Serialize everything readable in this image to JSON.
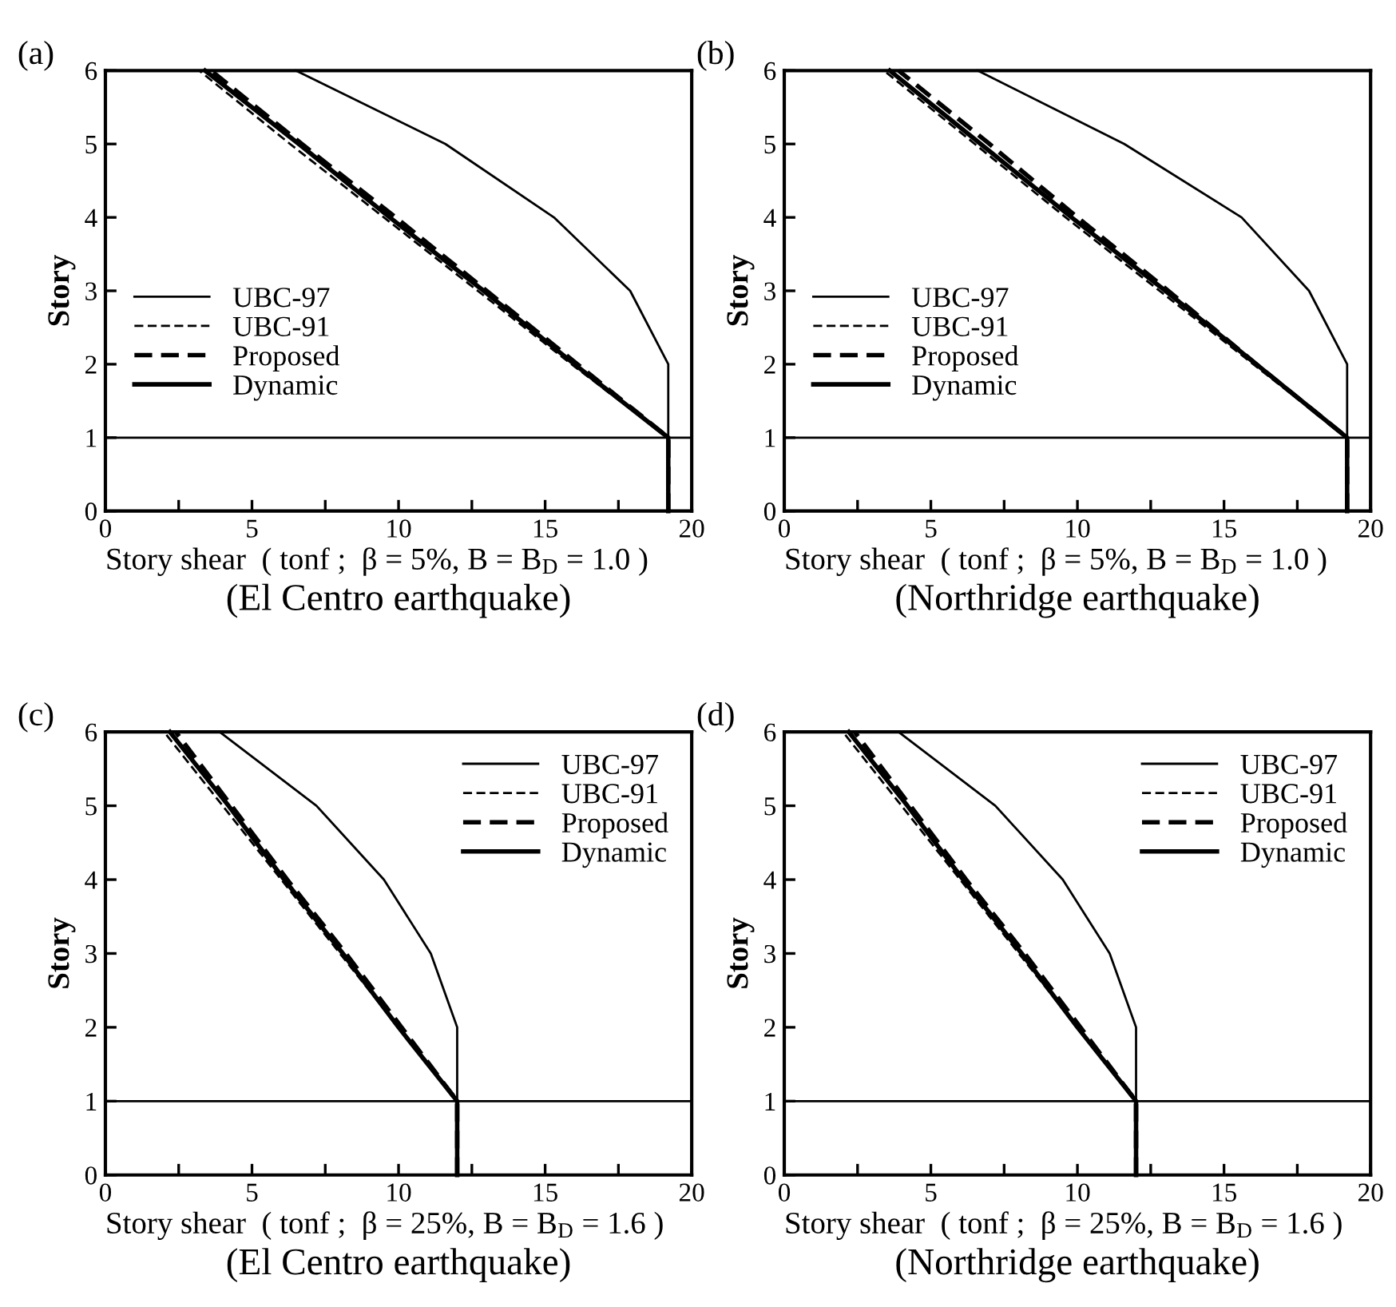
{
  "chart_data": [
    {
      "type": "line",
      "title": "(a)",
      "xlabel": "Story shear  ( tonf ;  β = 5%, B = B$_{D}$ = 1.0 )",
      "ylabel": "Story",
      "annotations": [
        "(El Centro earthquake)"
      ],
      "xlim": [
        0,
        20
      ],
      "ylim": [
        0,
        6
      ],
      "xticks": [
        0,
        {
          "value": 2.5,
          "label": null
        },
        5,
        {
          "value": 7.5,
          "label": null
        },
        10,
        {
          "value": 12.5,
          "label": null
        },
        15,
        {
          "value": 17.5,
          "label": null
        },
        20
      ],
      "yticks": [
        0,
        1,
        2,
        3,
        4,
        5,
        6
      ],
      "legend": "left",
      "grid": false,
      "ref_lines": [
        {
          "axis": "y",
          "value": 1
        }
      ],
      "series": [
        {
          "name": "UBC-97",
          "color": "#000000",
          "line_style": "solid",
          "x": [
            19.2,
            19.2,
            19.2,
            17.9,
            15.3,
            11.6,
            6.5
          ],
          "values": [
            0,
            1,
            2,
            3,
            4,
            5,
            6
          ]
        },
        {
          "name": "UBC-91",
          "color": "#000000",
          "line_style": "dashed",
          "x": [
            19.2,
            19.2,
            15.9,
            12.7,
            9.5,
            6.3,
            3.2
          ],
          "values": [
            0,
            1,
            2,
            3,
            4,
            5,
            6
          ]
        },
        {
          "name": "Proposed",
          "color": "#000000",
          "line_style": "dashed",
          "x": [
            19.2,
            19.2,
            16.1,
            13.0,
            9.9,
            6.7,
            3.6
          ],
          "values": [
            0,
            1,
            2,
            3,
            4,
            5,
            6
          ]
        },
        {
          "name": "Dynamic",
          "color": "#000000",
          "line_style": "solid",
          "x": [
            19.2,
            19.2,
            16.0,
            12.9,
            9.7,
            6.6,
            3.4
          ],
          "values": [
            0,
            1,
            2,
            3,
            4,
            5,
            6
          ]
        }
      ]
    },
    {
      "type": "line",
      "title": "(b)",
      "xlabel": "Story shear  ( tonf ;  β = 5%, B = B$_{D}$ = 1.0 )",
      "ylabel": "Story",
      "annotations": [
        "(Northridge earthquake)"
      ],
      "xlim": [
        0,
        20
      ],
      "ylim": [
        0,
        6
      ],
      "xticks": [
        0,
        {
          "value": 2.5,
          "label": null
        },
        5,
        {
          "value": 7.5,
          "label": null
        },
        10,
        {
          "value": 12.5,
          "label": null
        },
        15,
        {
          "value": 17.5,
          "label": null
        },
        20
      ],
      "yticks": [
        0,
        1,
        2,
        3,
        4,
        5,
        6
      ],
      "legend": "left",
      "grid": false,
      "ref_lines": [
        {
          "axis": "y",
          "value": 1
        }
      ],
      "series": [
        {
          "name": "UBC-97",
          "color": "#000000",
          "line_style": "solid",
          "x": [
            19.2,
            19.2,
            19.2,
            17.9,
            15.6,
            11.6,
            6.6
          ],
          "values": [
            0,
            1,
            2,
            3,
            4,
            5,
            6
          ]
        },
        {
          "name": "UBC-91",
          "color": "#000000",
          "line_style": "dashed",
          "x": [
            19.2,
            19.2,
            16.0,
            12.8,
            9.6,
            6.5,
            3.4
          ],
          "values": [
            0,
            1,
            2,
            3,
            4,
            5,
            6
          ]
        },
        {
          "name": "Proposed",
          "color": "#000000",
          "line_style": "dashed",
          "x": [
            19.2,
            19.2,
            16.1,
            13.1,
            10.0,
            7.0,
            3.9
          ],
          "values": [
            0,
            1,
            2,
            3,
            4,
            5,
            6
          ]
        },
        {
          "name": "Dynamic",
          "color": "#000000",
          "line_style": "solid",
          "x": [
            19.2,
            19.2,
            16.1,
            13.0,
            9.8,
            6.7,
            3.6
          ],
          "values": [
            0,
            1,
            2,
            3,
            4,
            5,
            6
          ]
        }
      ]
    },
    {
      "type": "line",
      "title": "(c)",
      "xlabel": "Story shear  ( tonf ;  β = 25%, B = B$_{D}$ = 1.6 )",
      "ylabel": "Story",
      "annotations": [
        "(El Centro earthquake)"
      ],
      "xlim": [
        0,
        20
      ],
      "ylim": [
        0,
        6
      ],
      "xticks": [
        0,
        {
          "value": 2.5,
          "label": null
        },
        5,
        {
          "value": 7.5,
          "label": null
        },
        10,
        {
          "value": 12.5,
          "label": null
        },
        15,
        {
          "value": 17.5,
          "label": null
        },
        20
      ],
      "yticks": [
        0,
        1,
        2,
        3,
        4,
        5,
        6
      ],
      "legend": "top right",
      "grid": false,
      "ref_lines": [
        {
          "axis": "y",
          "value": 1
        }
      ],
      "series": [
        {
          "name": "UBC-97",
          "color": "#000000",
          "line_style": "solid",
          "x": [
            12.0,
            12.0,
            12.0,
            11.1,
            9.5,
            7.2,
            3.9
          ],
          "values": [
            0,
            1,
            2,
            3,
            4,
            5,
            6
          ]
        },
        {
          "name": "UBC-91",
          "color": "#000000",
          "line_style": "dashed",
          "x": [
            12.0,
            12.0,
            10.0,
            8.0,
            6.0,
            4.0,
            2.0
          ],
          "values": [
            0,
            1,
            2,
            3,
            4,
            5,
            6
          ]
        },
        {
          "name": "Proposed",
          "color": "#000000",
          "line_style": "dashed",
          "x": [
            12.0,
            12.0,
            10.1,
            8.2,
            6.2,
            4.3,
            2.4
          ],
          "values": [
            0,
            1,
            2,
            3,
            4,
            5,
            6
          ]
        },
        {
          "name": "Dynamic",
          "color": "#000000",
          "line_style": "solid",
          "x": [
            12.0,
            12.0,
            10.0,
            8.1,
            6.1,
            4.2,
            2.2
          ],
          "values": [
            0,
            1,
            2,
            3,
            4,
            5,
            6
          ]
        }
      ]
    },
    {
      "type": "line",
      "title": "(d)",
      "xlabel": "Story shear  ( tonf ;  β = 25%, B = B$_{D}$ = 1.6 )",
      "ylabel": "Story",
      "annotations": [
        "(Northridge earthquake)"
      ],
      "xlim": [
        0,
        20
      ],
      "ylim": [
        0,
        6
      ],
      "xticks": [
        0,
        {
          "value": 2.5,
          "label": null
        },
        5,
        {
          "value": 7.5,
          "label": null
        },
        10,
        {
          "value": 12.5,
          "label": null
        },
        15,
        {
          "value": 17.5,
          "label": null
        },
        20
      ],
      "yticks": [
        0,
        1,
        2,
        3,
        4,
        5,
        6
      ],
      "legend": "top right",
      "grid": false,
      "ref_lines": [
        {
          "axis": "y",
          "value": 1
        }
      ],
      "series": [
        {
          "name": "UBC-97",
          "color": "#000000",
          "line_style": "solid",
          "x": [
            12.0,
            12.0,
            12.0,
            11.1,
            9.5,
            7.2,
            3.9
          ],
          "values": [
            0,
            1,
            2,
            3,
            4,
            5,
            6
          ]
        },
        {
          "name": "UBC-91",
          "color": "#000000",
          "line_style": "dashed",
          "x": [
            12.0,
            12.0,
            10.0,
            8.0,
            6.0,
            4.0,
            2.0
          ],
          "values": [
            0,
            1,
            2,
            3,
            4,
            5,
            6
          ]
        },
        {
          "name": "Proposed",
          "color": "#000000",
          "line_style": "dashed",
          "x": [
            12.0,
            12.0,
            10.1,
            8.2,
            6.2,
            4.3,
            2.4
          ],
          "values": [
            0,
            1,
            2,
            3,
            4,
            5,
            6
          ]
        },
        {
          "name": "Dynamic",
          "color": "#000000",
          "line_style": "solid",
          "x": [
            12.0,
            12.0,
            10.0,
            8.1,
            6.1,
            4.2,
            2.2
          ],
          "values": [
            0,
            1,
            2,
            3,
            4,
            5,
            6
          ]
        }
      ]
    }
  ]
}
